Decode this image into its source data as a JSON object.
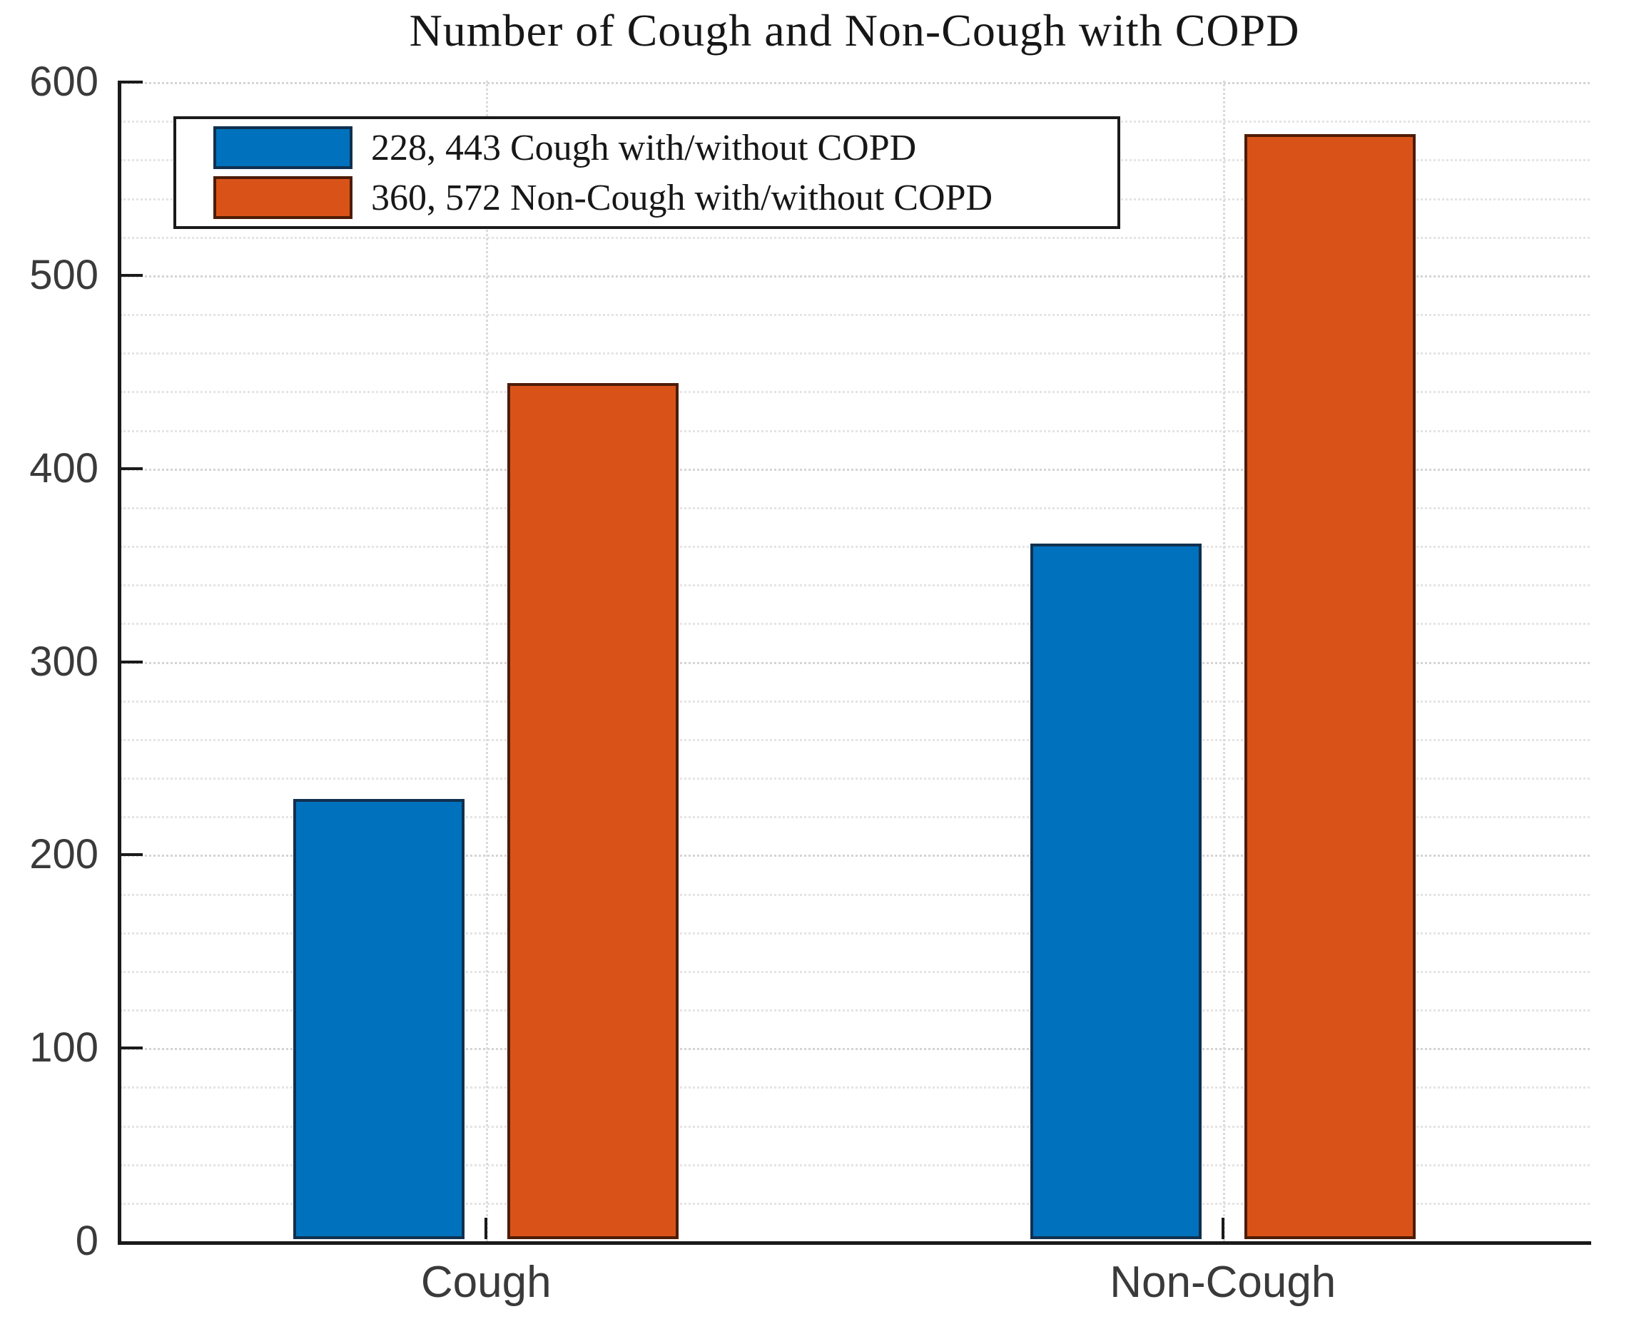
{
  "chart_data": {
    "type": "bar",
    "title": "Number of Cough and Non-Cough with COPD",
    "categories": [
      "Cough",
      "Non-Cough"
    ],
    "series": [
      {
        "name": "228, 443 Cough with/without COPD",
        "color": "#0072BD",
        "edge_color": "#10304f",
        "values": [
          228,
          360
        ]
      },
      {
        "name": "360, 572 Non-Cough with/without COPD",
        "color": "#D95319",
        "edge_color": "#4d1c06",
        "values": [
          443,
          572
        ]
      }
    ],
    "xlabel": "",
    "ylabel": "",
    "ylim": [
      0,
      600
    ],
    "yticks": [
      0,
      100,
      200,
      300,
      400,
      500,
      600
    ],
    "y_minor_step": 20,
    "grid": "on",
    "minor_grid": "on",
    "grid_style": "dotted",
    "legend_position": "upper-left",
    "axis_color": "#1a1a1a",
    "tick_label_color": "#3a3a3a",
    "box": "off (no top/right spines)"
  }
}
